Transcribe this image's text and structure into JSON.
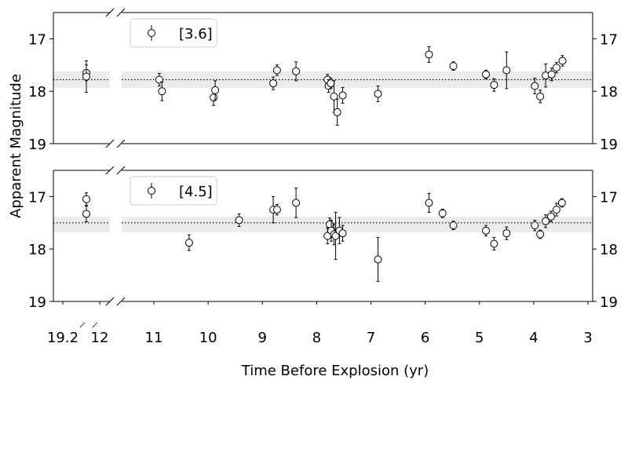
{
  "chart_data": {
    "type": "scatter",
    "xlabel": "Time Before Explosion (yr)",
    "ylabel": "Apparent Magnitude",
    "x_reversed": true,
    "broken_axis": {
      "left_segment_ticks": [
        19.2,
        12
      ],
      "left_segment_tick_labels": [
        "19.2",
        "12"
      ],
      "main_segment_xlim": [
        11.8,
        3.0
      ]
    },
    "x_ticks": [
      11,
      10,
      9,
      8,
      7,
      6,
      5,
      4,
      3
    ],
    "x_tick_labels": [
      "11",
      "10",
      "9",
      "8",
      "7",
      "6",
      "5",
      "4",
      "3"
    ],
    "y_ticks": [
      17,
      18,
      19
    ],
    "y_tick_labels": [
      "17",
      "18",
      "19"
    ],
    "ylim": [
      19.0,
      16.5
    ],
    "y_inverted": true,
    "grid": false,
    "legend_position": "top-left",
    "panels": [
      {
        "legend": "[3.6]",
        "mean_mag": 17.78,
        "band": [
          17.62,
          17.94
        ],
        "points": [
          {
            "seg": "left",
            "t": 19.2,
            "mag": 17.65,
            "err": 0.15
          },
          {
            "seg": "left",
            "t": 19.2,
            "mag": 17.72,
            "err": 0.3
          },
          {
            "seg": "main",
            "t": 10.9,
            "mag": 17.78,
            "err": 0.12
          },
          {
            "seg": "main",
            "t": 10.85,
            "mag": 18.0,
            "err": 0.18
          },
          {
            "seg": "main",
            "t": 9.9,
            "mag": 18.12,
            "err": 0.15
          },
          {
            "seg": "main",
            "t": 9.87,
            "mag": 17.98,
            "err": 0.18
          },
          {
            "seg": "main",
            "t": 8.8,
            "mag": 17.85,
            "err": 0.12
          },
          {
            "seg": "main",
            "t": 8.73,
            "mag": 17.6,
            "err": 0.1
          },
          {
            "seg": "main",
            "t": 8.38,
            "mag": 17.62,
            "err": 0.18
          },
          {
            "seg": "main",
            "t": 7.8,
            "mag": 17.78,
            "err": 0.1
          },
          {
            "seg": "main",
            "t": 7.78,
            "mag": 17.9,
            "err": 0.12
          },
          {
            "seg": "main",
            "t": 7.74,
            "mag": 17.85,
            "err": 0.1
          },
          {
            "seg": "main",
            "t": 7.68,
            "mag": 18.1,
            "err": 0.3
          },
          {
            "seg": "main",
            "t": 7.62,
            "mag": 18.4,
            "err": 0.25
          },
          {
            "seg": "main",
            "t": 7.52,
            "mag": 18.08,
            "err": 0.15
          },
          {
            "seg": "main",
            "t": 6.87,
            "mag": 18.05,
            "err": 0.15
          },
          {
            "seg": "main",
            "t": 5.93,
            "mag": 17.3,
            "err": 0.15
          },
          {
            "seg": "main",
            "t": 5.48,
            "mag": 17.52,
            "err": 0.08
          },
          {
            "seg": "main",
            "t": 4.88,
            "mag": 17.68,
            "err": 0.08
          },
          {
            "seg": "main",
            "t": 4.73,
            "mag": 17.88,
            "err": 0.12
          },
          {
            "seg": "main",
            "t": 4.5,
            "mag": 17.6,
            "err": 0.35
          },
          {
            "seg": "main",
            "t": 3.98,
            "mag": 17.9,
            "err": 0.15
          },
          {
            "seg": "main",
            "t": 3.88,
            "mag": 18.1,
            "err": 0.12
          },
          {
            "seg": "main",
            "t": 3.78,
            "mag": 17.7,
            "err": 0.22
          },
          {
            "seg": "main",
            "t": 3.67,
            "mag": 17.68,
            "err": 0.12
          },
          {
            "seg": "main",
            "t": 3.58,
            "mag": 17.55,
            "err": 0.1
          },
          {
            "seg": "main",
            "t": 3.47,
            "mag": 17.42,
            "err": 0.1
          }
        ]
      },
      {
        "legend": "[4.5]",
        "mean_mag": 17.5,
        "band": [
          17.38,
          17.68
        ],
        "points": [
          {
            "seg": "left",
            "t": 19.2,
            "mag": 17.05,
            "err": 0.12
          },
          {
            "seg": "left",
            "t": 19.2,
            "mag": 17.33,
            "err": 0.15
          },
          {
            "seg": "main",
            "t": 10.35,
            "mag": 17.88,
            "err": 0.15
          },
          {
            "seg": "main",
            "t": 9.43,
            "mag": 17.45,
            "err": 0.12
          },
          {
            "seg": "main",
            "t": 8.8,
            "mag": 17.25,
            "err": 0.25
          },
          {
            "seg": "main",
            "t": 8.73,
            "mag": 17.25,
            "err": 0.1
          },
          {
            "seg": "main",
            "t": 8.38,
            "mag": 17.12,
            "err": 0.28
          },
          {
            "seg": "main",
            "t": 7.8,
            "mag": 17.75,
            "err": 0.15
          },
          {
            "seg": "main",
            "t": 7.76,
            "mag": 17.53,
            "err": 0.12
          },
          {
            "seg": "main",
            "t": 7.73,
            "mag": 17.65,
            "err": 0.2
          },
          {
            "seg": "main",
            "t": 7.68,
            "mag": 17.72,
            "err": 0.2
          },
          {
            "seg": "main",
            "t": 7.65,
            "mag": 17.75,
            "err": 0.45
          },
          {
            "seg": "main",
            "t": 7.58,
            "mag": 17.65,
            "err": 0.25
          },
          {
            "seg": "main",
            "t": 7.52,
            "mag": 17.7,
            "err": 0.15
          },
          {
            "seg": "main",
            "t": 6.87,
            "mag": 18.2,
            "err": 0.42
          },
          {
            "seg": "main",
            "t": 5.93,
            "mag": 17.12,
            "err": 0.18
          },
          {
            "seg": "main",
            "t": 5.68,
            "mag": 17.32,
            "err": 0.08
          },
          {
            "seg": "main",
            "t": 5.48,
            "mag": 17.55,
            "err": 0.08
          },
          {
            "seg": "main",
            "t": 4.88,
            "mag": 17.65,
            "err": 0.1
          },
          {
            "seg": "main",
            "t": 4.73,
            "mag": 17.9,
            "err": 0.12
          },
          {
            "seg": "main",
            "t": 4.5,
            "mag": 17.7,
            "err": 0.12
          },
          {
            "seg": "main",
            "t": 3.98,
            "mag": 17.55,
            "err": 0.1
          },
          {
            "seg": "main",
            "t": 3.88,
            "mag": 17.72,
            "err": 0.08
          },
          {
            "seg": "main",
            "t": 3.78,
            "mag": 17.47,
            "err": 0.12
          },
          {
            "seg": "main",
            "t": 3.68,
            "mag": 17.38,
            "err": 0.1
          },
          {
            "seg": "main",
            "t": 3.58,
            "mag": 17.25,
            "err": 0.12
          },
          {
            "seg": "main",
            "t": 3.48,
            "mag": 17.12,
            "err": 0.08
          }
        ]
      }
    ]
  }
}
